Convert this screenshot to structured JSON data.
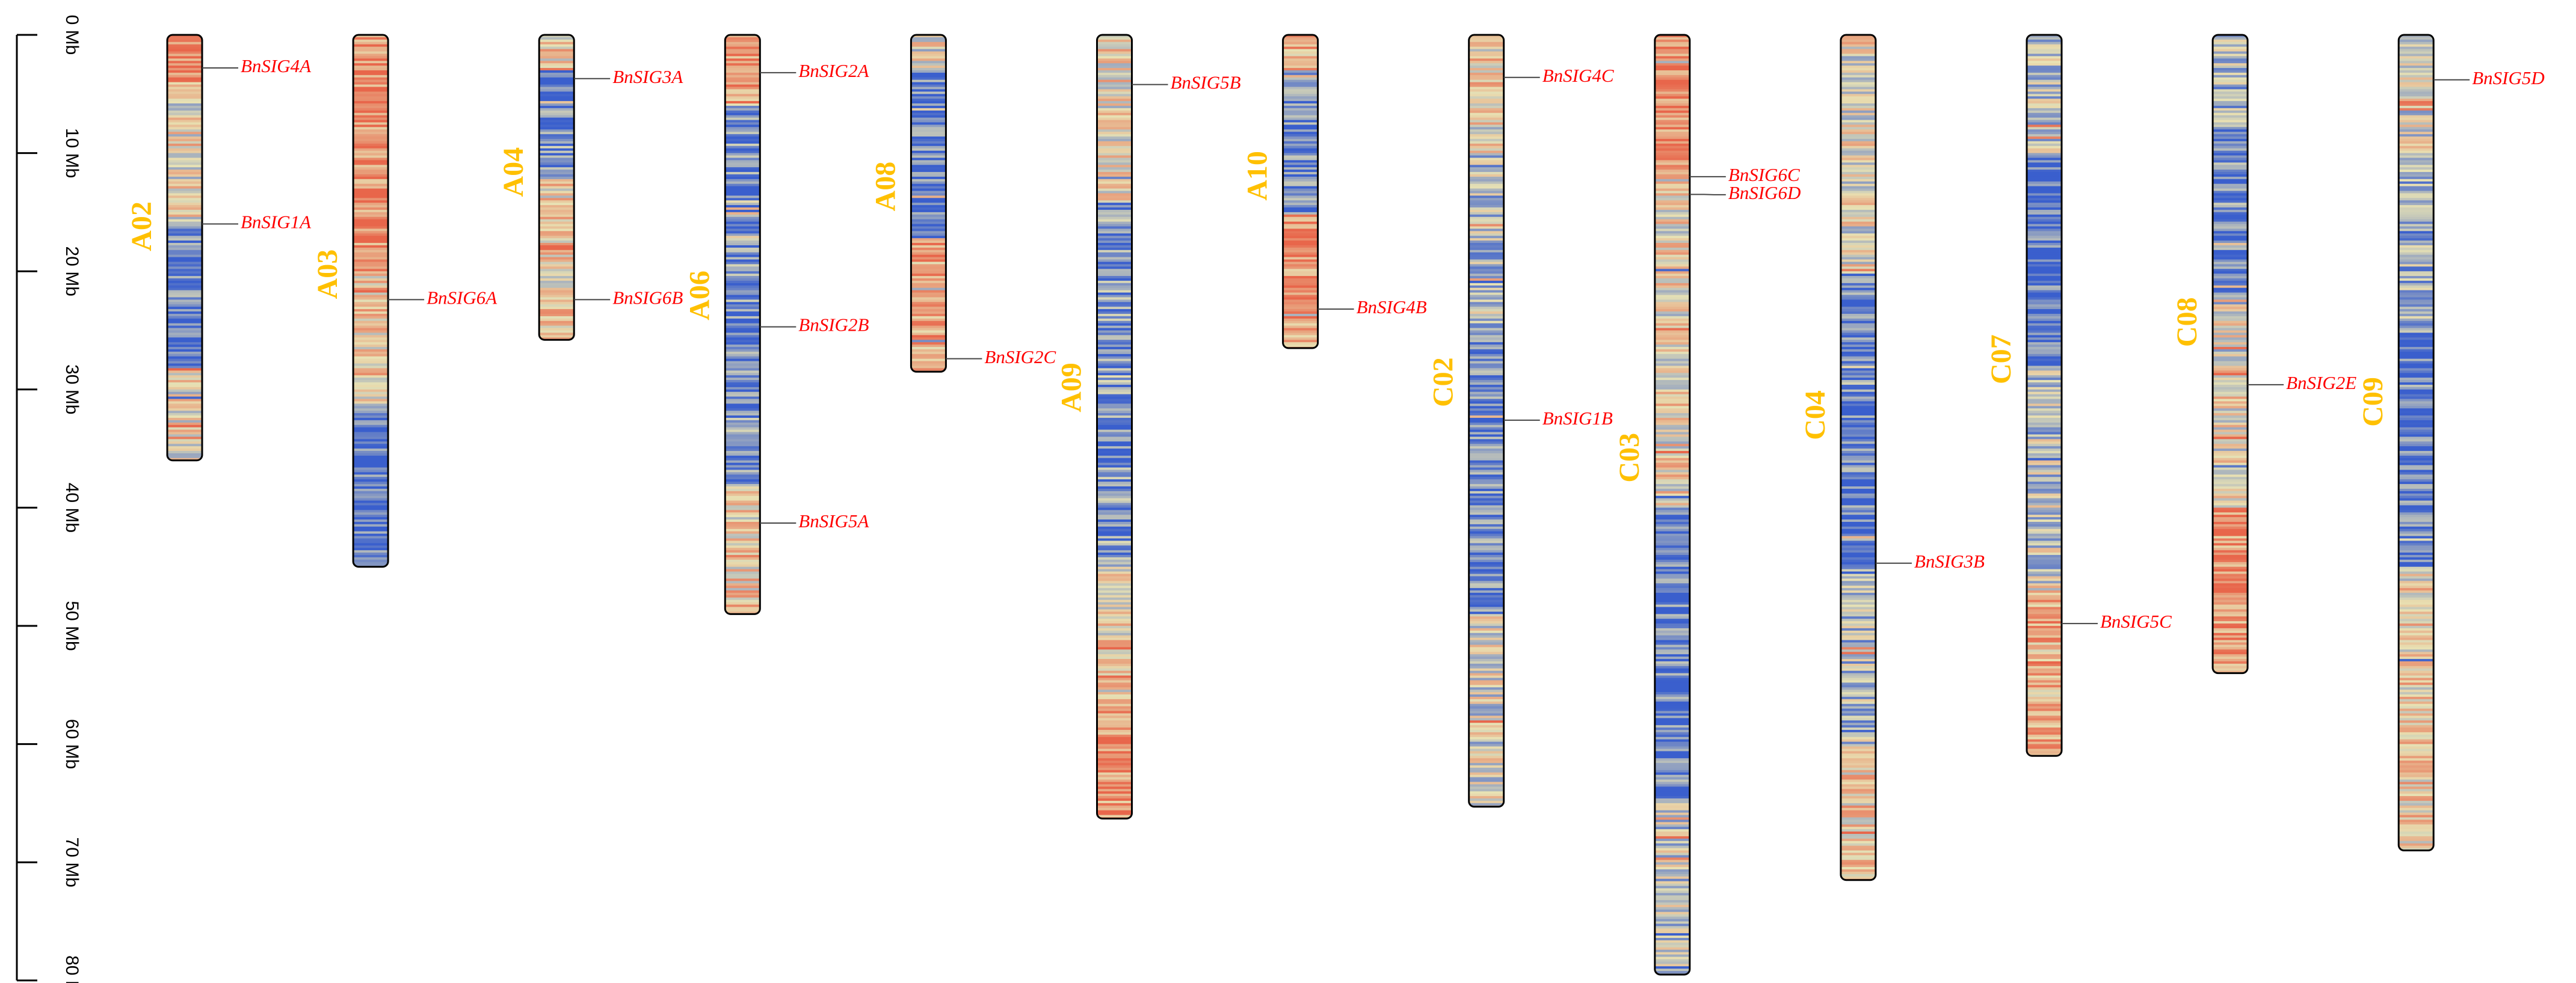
{
  "colors": {
    "label": "#ffc000",
    "gene": "#ff0000",
    "density_low": "#3a5fcd",
    "density_mid": "#e8e2b4",
    "density_high": "#e8664b"
  },
  "axis": {
    "unit": "Mb",
    "ticks": [
      "0 Mb",
      "10 Mb",
      "20 Mb",
      "30 Mb",
      "40 Mb",
      "50 Mb",
      "60 Mb",
      "70 Mb",
      "80 Mb"
    ],
    "max": 80
  },
  "chart_data": {
    "type": "chromosome-map",
    "unit": "Mb",
    "chromosomes": [
      {
        "name": "A02",
        "length": 36.0,
        "genes": [
          {
            "name": "BnSIG4A",
            "pos": 2.8
          },
          {
            "name": "BnSIG1A",
            "pos": 16.0
          }
        ]
      },
      {
        "name": "A03",
        "length": 45.0,
        "genes": [
          {
            "name": "BnSIG6A",
            "pos": 22.4
          }
        ]
      },
      {
        "name": "A04",
        "length": 25.8,
        "genes": [
          {
            "name": "BnSIG3A",
            "pos": 3.7
          },
          {
            "name": "BnSIG6B",
            "pos": 22.4
          }
        ]
      },
      {
        "name": "A06",
        "length": 49.0,
        "genes": [
          {
            "name": "BnSIG2A",
            "pos": 3.2
          },
          {
            "name": "BnSIG2B",
            "pos": 24.7
          },
          {
            "name": "BnSIG5A",
            "pos": 41.3
          }
        ]
      },
      {
        "name": "A08",
        "length": 28.5,
        "genes": [
          {
            "name": "BnSIG2C",
            "pos": 27.4
          }
        ]
      },
      {
        "name": "A09",
        "length": 66.3,
        "genes": [
          {
            "name": "BnSIG5B",
            "pos": 4.2
          }
        ]
      },
      {
        "name": "A10",
        "length": 26.5,
        "genes": [
          {
            "name": "BnSIG4B",
            "pos": 23.2
          }
        ]
      },
      {
        "name": "C02",
        "length": 65.3,
        "genes": [
          {
            "name": "BnSIG4C",
            "pos": 3.6
          },
          {
            "name": "BnSIG1B",
            "pos": 32.6
          }
        ]
      },
      {
        "name": "C03",
        "length": 79.5,
        "genes": [
          {
            "name": "BnSIG6C",
            "pos": 12.0
          },
          {
            "name": "BnSIG6D",
            "pos": 13.5
          }
        ]
      },
      {
        "name": "C04",
        "length": 71.5,
        "genes": [
          {
            "name": "BnSIG3B",
            "pos": 44.7
          }
        ]
      },
      {
        "name": "C07",
        "length": 61.0,
        "genes": [
          {
            "name": "BnSIG5C",
            "pos": 49.8
          }
        ]
      },
      {
        "name": "C08",
        "length": 54.0,
        "genes": [
          {
            "name": "BnSIG2E",
            "pos": 29.6
          }
        ]
      },
      {
        "name": "C09",
        "length": 69.0,
        "genes": [
          {
            "name": "BnSIG5D",
            "pos": 3.8
          }
        ]
      }
    ]
  }
}
